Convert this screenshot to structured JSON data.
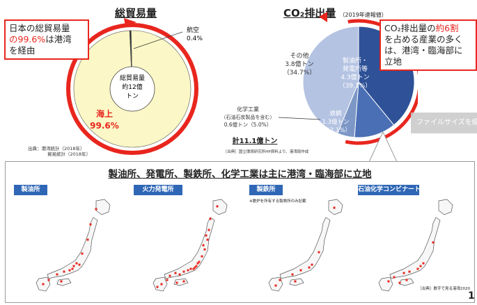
{
  "left_section": {
    "title": "総貿易量",
    "callout": {
      "line1_pre": "日本の総貿易量",
      "line2_pct": "の99.6%",
      "line2_post": "は港湾",
      "line3": "を経由"
    },
    "center_label": [
      "総貿易量",
      "約12億",
      "トン"
    ],
    "sea_label": "海上",
    "sea_value": "99.6%",
    "air_label": "航空",
    "air_value": "0.4%",
    "source": [
      "出典：港湾統計（2018年）",
      "貿易統計（2018年）"
    ]
  },
  "right_section": {
    "title": "CO₂排出量",
    "title_note": "（2019年速報値）",
    "callout": {
      "line1_pre": "CO₂排出量の",
      "line1_red": "約6割",
      "line2": "を占める産業の多く",
      "line3": "は、港湾・臨海部に",
      "line4": "立地"
    },
    "total": "計11.1億トン",
    "source": "［出典］国立環境研究所HP資料より、港湾局作成",
    "slice_labels": {
      "refinery": [
        "製油所・",
        "発電所等",
        "4.3億トン",
        "（39.1%）"
      ],
      "steel": [
        "鉄鋼",
        "1.3億トン",
        "（12.1%）"
      ],
      "chemical": [
        "化学工業",
        "（石油石炭製品を含む）",
        "0.6億トン（5.0%）"
      ],
      "other": [
        "その他",
        "3.8億トン",
        "（34.7%）"
      ]
    }
  },
  "chart_data": [
    {
      "type": "pie",
      "title": "総貿易量",
      "categories": [
        "海上",
        "航空"
      ],
      "values": [
        99.6,
        0.4
      ]
    },
    {
      "type": "pie",
      "title": "CO₂排出量",
      "categories": [
        "製油所・発電所等",
        "鉄鋼",
        "化学工業",
        "その他"
      ],
      "values": [
        39.1,
        12.1,
        5.0,
        34.7
      ],
      "value_labels": [
        "4.3億トン",
        "1.3億トン",
        "0.6億トン",
        "3.8億トン"
      ],
      "colors": [
        "#2e5197",
        "#4a6fb5",
        "#7d98c6",
        "#b4c3e2"
      ]
    }
  ],
  "bottom_panel": {
    "title": "製油所、発電所、製鉄所、化学工業は主に港湾・臨海部に立地",
    "maps": [
      {
        "label": "製油所"
      },
      {
        "label": "火力発電所"
      },
      {
        "label": "製鉄所",
        "note": "※銑炉を所有する製鉄所のみ記載"
      },
      {
        "label": "石油化学コンビナート"
      }
    ],
    "source": "［出典］数字で見る港湾2020"
  },
  "tooltip": "ファイルサイズを縮",
  "page_number": "1"
}
